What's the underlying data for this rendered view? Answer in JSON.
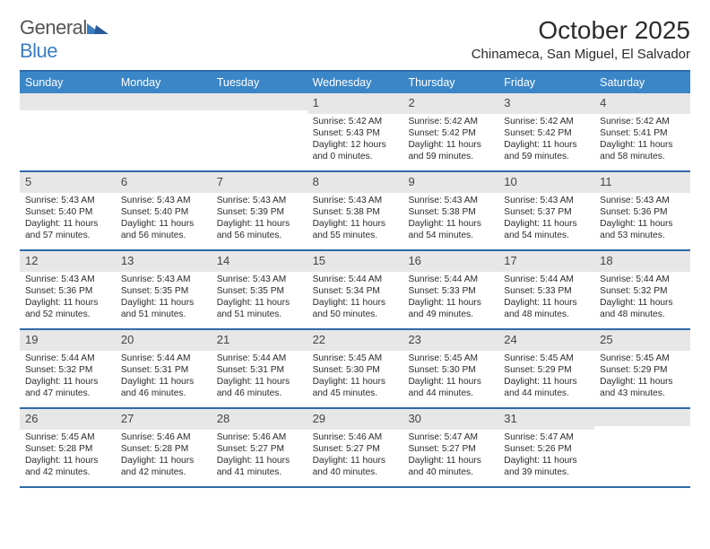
{
  "header": {
    "logo_general": "General",
    "logo_blue": "Blue",
    "logo_main_color": "#3b7dc4",
    "logo_accent_color": "#2a5a99",
    "title": "October 2025",
    "location": "Chinameca, San Miguel, El Salvador"
  },
  "colors": {
    "header_bar": "#3b86c7",
    "rule": "#2f6aa8",
    "daynum_bg": "#e7e7e7",
    "text": "#2b2b2b"
  },
  "day_headers": [
    "Sunday",
    "Monday",
    "Tuesday",
    "Wednesday",
    "Thursday",
    "Friday",
    "Saturday"
  ],
  "weeks": [
    [
      {
        "blank": true
      },
      {
        "blank": true
      },
      {
        "blank": true
      },
      {
        "day": "1",
        "sunrise": "Sunrise: 5:42 AM",
        "sunset": "Sunset: 5:43 PM",
        "daylight1": "Daylight: 12 hours",
        "daylight2": "and 0 minutes."
      },
      {
        "day": "2",
        "sunrise": "Sunrise: 5:42 AM",
        "sunset": "Sunset: 5:42 PM",
        "daylight1": "Daylight: 11 hours",
        "daylight2": "and 59 minutes."
      },
      {
        "day": "3",
        "sunrise": "Sunrise: 5:42 AM",
        "sunset": "Sunset: 5:42 PM",
        "daylight1": "Daylight: 11 hours",
        "daylight2": "and 59 minutes."
      },
      {
        "day": "4",
        "sunrise": "Sunrise: 5:42 AM",
        "sunset": "Sunset: 5:41 PM",
        "daylight1": "Daylight: 11 hours",
        "daylight2": "and 58 minutes."
      }
    ],
    [
      {
        "day": "5",
        "sunrise": "Sunrise: 5:43 AM",
        "sunset": "Sunset: 5:40 PM",
        "daylight1": "Daylight: 11 hours",
        "daylight2": "and 57 minutes."
      },
      {
        "day": "6",
        "sunrise": "Sunrise: 5:43 AM",
        "sunset": "Sunset: 5:40 PM",
        "daylight1": "Daylight: 11 hours",
        "daylight2": "and 56 minutes."
      },
      {
        "day": "7",
        "sunrise": "Sunrise: 5:43 AM",
        "sunset": "Sunset: 5:39 PM",
        "daylight1": "Daylight: 11 hours",
        "daylight2": "and 56 minutes."
      },
      {
        "day": "8",
        "sunrise": "Sunrise: 5:43 AM",
        "sunset": "Sunset: 5:38 PM",
        "daylight1": "Daylight: 11 hours",
        "daylight2": "and 55 minutes."
      },
      {
        "day": "9",
        "sunrise": "Sunrise: 5:43 AM",
        "sunset": "Sunset: 5:38 PM",
        "daylight1": "Daylight: 11 hours",
        "daylight2": "and 54 minutes."
      },
      {
        "day": "10",
        "sunrise": "Sunrise: 5:43 AM",
        "sunset": "Sunset: 5:37 PM",
        "daylight1": "Daylight: 11 hours",
        "daylight2": "and 54 minutes."
      },
      {
        "day": "11",
        "sunrise": "Sunrise: 5:43 AM",
        "sunset": "Sunset: 5:36 PM",
        "daylight1": "Daylight: 11 hours",
        "daylight2": "and 53 minutes."
      }
    ],
    [
      {
        "day": "12",
        "sunrise": "Sunrise: 5:43 AM",
        "sunset": "Sunset: 5:36 PM",
        "daylight1": "Daylight: 11 hours",
        "daylight2": "and 52 minutes."
      },
      {
        "day": "13",
        "sunrise": "Sunrise: 5:43 AM",
        "sunset": "Sunset: 5:35 PM",
        "daylight1": "Daylight: 11 hours",
        "daylight2": "and 51 minutes."
      },
      {
        "day": "14",
        "sunrise": "Sunrise: 5:43 AM",
        "sunset": "Sunset: 5:35 PM",
        "daylight1": "Daylight: 11 hours",
        "daylight2": "and 51 minutes."
      },
      {
        "day": "15",
        "sunrise": "Sunrise: 5:44 AM",
        "sunset": "Sunset: 5:34 PM",
        "daylight1": "Daylight: 11 hours",
        "daylight2": "and 50 minutes."
      },
      {
        "day": "16",
        "sunrise": "Sunrise: 5:44 AM",
        "sunset": "Sunset: 5:33 PM",
        "daylight1": "Daylight: 11 hours",
        "daylight2": "and 49 minutes."
      },
      {
        "day": "17",
        "sunrise": "Sunrise: 5:44 AM",
        "sunset": "Sunset: 5:33 PM",
        "daylight1": "Daylight: 11 hours",
        "daylight2": "and 48 minutes."
      },
      {
        "day": "18",
        "sunrise": "Sunrise: 5:44 AM",
        "sunset": "Sunset: 5:32 PM",
        "daylight1": "Daylight: 11 hours",
        "daylight2": "and 48 minutes."
      }
    ],
    [
      {
        "day": "19",
        "sunrise": "Sunrise: 5:44 AM",
        "sunset": "Sunset: 5:32 PM",
        "daylight1": "Daylight: 11 hours",
        "daylight2": "and 47 minutes."
      },
      {
        "day": "20",
        "sunrise": "Sunrise: 5:44 AM",
        "sunset": "Sunset: 5:31 PM",
        "daylight1": "Daylight: 11 hours",
        "daylight2": "and 46 minutes."
      },
      {
        "day": "21",
        "sunrise": "Sunrise: 5:44 AM",
        "sunset": "Sunset: 5:31 PM",
        "daylight1": "Daylight: 11 hours",
        "daylight2": "and 46 minutes."
      },
      {
        "day": "22",
        "sunrise": "Sunrise: 5:45 AM",
        "sunset": "Sunset: 5:30 PM",
        "daylight1": "Daylight: 11 hours",
        "daylight2": "and 45 minutes."
      },
      {
        "day": "23",
        "sunrise": "Sunrise: 5:45 AM",
        "sunset": "Sunset: 5:30 PM",
        "daylight1": "Daylight: 11 hours",
        "daylight2": "and 44 minutes."
      },
      {
        "day": "24",
        "sunrise": "Sunrise: 5:45 AM",
        "sunset": "Sunset: 5:29 PM",
        "daylight1": "Daylight: 11 hours",
        "daylight2": "and 44 minutes."
      },
      {
        "day": "25",
        "sunrise": "Sunrise: 5:45 AM",
        "sunset": "Sunset: 5:29 PM",
        "daylight1": "Daylight: 11 hours",
        "daylight2": "and 43 minutes."
      }
    ],
    [
      {
        "day": "26",
        "sunrise": "Sunrise: 5:45 AM",
        "sunset": "Sunset: 5:28 PM",
        "daylight1": "Daylight: 11 hours",
        "daylight2": "and 42 minutes."
      },
      {
        "day": "27",
        "sunrise": "Sunrise: 5:46 AM",
        "sunset": "Sunset: 5:28 PM",
        "daylight1": "Daylight: 11 hours",
        "daylight2": "and 42 minutes."
      },
      {
        "day": "28",
        "sunrise": "Sunrise: 5:46 AM",
        "sunset": "Sunset: 5:27 PM",
        "daylight1": "Daylight: 11 hours",
        "daylight2": "and 41 minutes."
      },
      {
        "day": "29",
        "sunrise": "Sunrise: 5:46 AM",
        "sunset": "Sunset: 5:27 PM",
        "daylight1": "Daylight: 11 hours",
        "daylight2": "and 40 minutes."
      },
      {
        "day": "30",
        "sunrise": "Sunrise: 5:47 AM",
        "sunset": "Sunset: 5:27 PM",
        "daylight1": "Daylight: 11 hours",
        "daylight2": "and 40 minutes."
      },
      {
        "day": "31",
        "sunrise": "Sunrise: 5:47 AM",
        "sunset": "Sunset: 5:26 PM",
        "daylight1": "Daylight: 11 hours",
        "daylight2": "and 39 minutes."
      },
      {
        "blank": true
      }
    ]
  ]
}
